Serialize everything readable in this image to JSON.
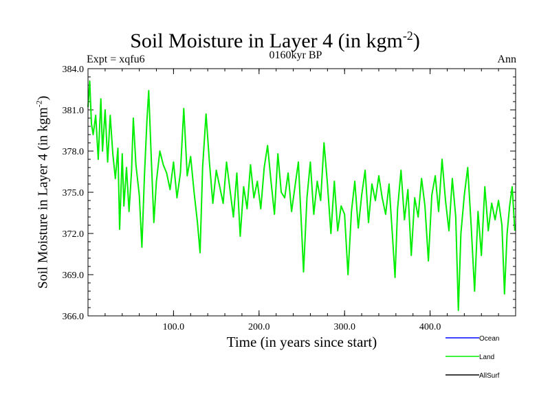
{
  "chart_data": {
    "type": "line",
    "title": "Soil Moisture in Layer 4 (in kgm",
    "title_sup": "-2",
    "title_tail": ")",
    "subtitle_left": "Expt = xqfu6",
    "subtitle_center": "0160kyr BP",
    "subtitle_right": "Ann",
    "xlabel": "Time (in years since start)",
    "ylabel": "Soil Moisture in Layer 4 (in kgm",
    "ylabel_sup": "-2",
    "ylabel_tail": ")",
    "xlim": [
      0,
      500
    ],
    "ylim": [
      366.0,
      384.0
    ],
    "x_ticks": [
      100,
      200,
      300,
      400
    ],
    "x_tick_labels": [
      "100.0",
      "200.0",
      "300.0",
      "400.0"
    ],
    "y_ticks": [
      366,
      369,
      372,
      375,
      378,
      381,
      384
    ],
    "y_tick_labels": [
      "366.0",
      "369.0",
      "372.0",
      "375.0",
      "378.0",
      "381.0",
      "384.0"
    ],
    "legend": [
      "Ocean",
      "Land",
      "AllSurf"
    ],
    "legend_colors": [
      "#0000ff",
      "#00ee00",
      "#000000"
    ],
    "series": [
      {
        "name": "Land",
        "color": "#00ee00",
        "points": [
          [
            0,
            381.2
          ],
          [
            2,
            383.1
          ],
          [
            4,
            380.0
          ],
          [
            6,
            379.2
          ],
          [
            9,
            380.6
          ],
          [
            12,
            377.4
          ],
          [
            15,
            381.8
          ],
          [
            17,
            378.0
          ],
          [
            20,
            381.0
          ],
          [
            23,
            377.2
          ],
          [
            26,
            380.6
          ],
          [
            29,
            377.8
          ],
          [
            32,
            376.0
          ],
          [
            35,
            378.2
          ],
          [
            37,
            372.3
          ],
          [
            40,
            377.8
          ],
          [
            42,
            374.0
          ],
          [
            45,
            376.8
          ],
          [
            48,
            373.6
          ],
          [
            51,
            376.6
          ],
          [
            53,
            380.4
          ],
          [
            56,
            377.0
          ],
          [
            60,
            374.8
          ],
          [
            63,
            371.0
          ],
          [
            66,
            376.2
          ],
          [
            69,
            380.3
          ],
          [
            71,
            382.4
          ],
          [
            74,
            377.4
          ],
          [
            77,
            372.8
          ],
          [
            80,
            375.8
          ],
          [
            84,
            378.0
          ],
          [
            88,
            377.0
          ],
          [
            92,
            376.4
          ],
          [
            96,
            375.2
          ],
          [
            100,
            377.2
          ],
          [
            104,
            374.6
          ],
          [
            108,
            376.4
          ],
          [
            112,
            381.1
          ],
          [
            116,
            376.2
          ],
          [
            120,
            377.6
          ],
          [
            124,
            375.0
          ],
          [
            128,
            372.8
          ],
          [
            131,
            370.6
          ],
          [
            134,
            376.8
          ],
          [
            138,
            380.7
          ],
          [
            142,
            377.2
          ],
          [
            146,
            374.2
          ],
          [
            150,
            376.6
          ],
          [
            154,
            375.4
          ],
          [
            158,
            374.2
          ],
          [
            162,
            377.2
          ],
          [
            166,
            375.2
          ],
          [
            170,
            373.2
          ],
          [
            174,
            376.4
          ],
          [
            178,
            371.8
          ],
          [
            182,
            375.4
          ],
          [
            186,
            373.8
          ],
          [
            190,
            377.0
          ],
          [
            194,
            374.6
          ],
          [
            198,
            375.8
          ],
          [
            202,
            373.8
          ],
          [
            206,
            376.8
          ],
          [
            210,
            378.4
          ],
          [
            214,
            375.8
          ],
          [
            218,
            373.4
          ],
          [
            222,
            377.8
          ],
          [
            226,
            375.0
          ],
          [
            230,
            374.6
          ],
          [
            234,
            376.4
          ],
          [
            238,
            373.6
          ],
          [
            242,
            375.4
          ],
          [
            246,
            377.2
          ],
          [
            250,
            372.0
          ],
          [
            252,
            369.2
          ],
          [
            256,
            374.6
          ],
          [
            260,
            377.2
          ],
          [
            264,
            373.4
          ],
          [
            268,
            375.8
          ],
          [
            272,
            374.4
          ],
          [
            276,
            378.6
          ],
          [
            280,
            375.6
          ],
          [
            284,
            372.0
          ],
          [
            288,
            375.8
          ],
          [
            292,
            372.2
          ],
          [
            296,
            374.0
          ],
          [
            300,
            373.4
          ],
          [
            304,
            369.0
          ],
          [
            308,
            373.6
          ],
          [
            312,
            375.8
          ],
          [
            316,
            372.4
          ],
          [
            320,
            374.8
          ],
          [
            324,
            376.6
          ],
          [
            328,
            372.8
          ],
          [
            332,
            375.6
          ],
          [
            336,
            374.4
          ],
          [
            340,
            376.2
          ],
          [
            344,
            374.6
          ],
          [
            348,
            373.4
          ],
          [
            352,
            375.6
          ],
          [
            356,
            371.8
          ],
          [
            359,
            368.8
          ],
          [
            362,
            373.8
          ],
          [
            366,
            376.6
          ],
          [
            370,
            373.0
          ],
          [
            374,
            375.2
          ],
          [
            378,
            370.4
          ],
          [
            382,
            374.6
          ],
          [
            386,
            373.2
          ],
          [
            390,
            376.0
          ],
          [
            394,
            374.0
          ],
          [
            398,
            370.0
          ],
          [
            402,
            374.8
          ],
          [
            406,
            376.2
          ],
          [
            410,
            373.6
          ],
          [
            414,
            377.4
          ],
          [
            418,
            374.4
          ],
          [
            422,
            372.2
          ],
          [
            426,
            376.0
          ],
          [
            430,
            373.2
          ],
          [
            433,
            366.4
          ],
          [
            436,
            372.0
          ],
          [
            440,
            374.8
          ],
          [
            444,
            376.8
          ],
          [
            448,
            372.6
          ],
          [
            452,
            367.8
          ],
          [
            456,
            373.6
          ],
          [
            460,
            370.4
          ],
          [
            464,
            375.4
          ],
          [
            468,
            372.2
          ],
          [
            472,
            374.2
          ],
          [
            476,
            373.0
          ],
          [
            480,
            374.4
          ],
          [
            484,
            372.6
          ],
          [
            487,
            367.6
          ],
          [
            490,
            372.0
          ],
          [
            493,
            374.0
          ],
          [
            496,
            375.4
          ],
          [
            499,
            372.2
          ]
        ]
      }
    ]
  }
}
